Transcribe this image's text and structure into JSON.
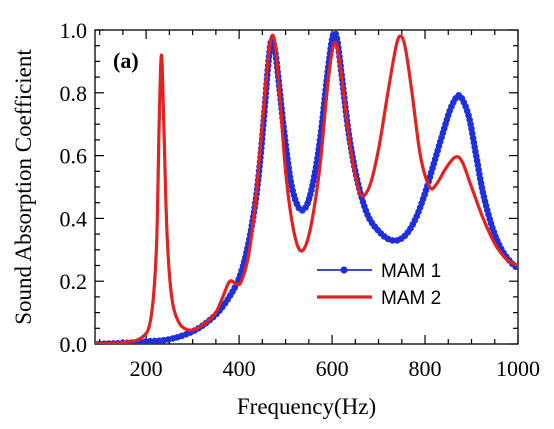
{
  "chart_data": {
    "type": "line",
    "panel_label": "(a)",
    "xlabel": "Frequency(Hz)",
    "ylabel": "Sound Absorption Coefficient",
    "xlim": [
      90,
      1000
    ],
    "ylim": [
      0,
      1.0
    ],
    "xticks": [
      200,
      400,
      600,
      800,
      1000
    ],
    "yticks": [
      0.0,
      0.2,
      0.4,
      0.6,
      0.8,
      1.0
    ],
    "ytick_labels": [
      "0.0",
      "0.2",
      "0.4",
      "0.6",
      "0.8",
      "1.0"
    ],
    "legend_position": "right-center",
    "series": [
      {
        "name": "MAM 1",
        "color": "#1f2fdc",
        "marker": "circle",
        "points": [
          [
            90,
            0.0
          ],
          [
            150,
            0.003
          ],
          [
            200,
            0.008
          ],
          [
            250,
            0.015
          ],
          [
            300,
            0.04
          ],
          [
            340,
            0.08
          ],
          [
            370,
            0.13
          ],
          [
            400,
            0.21
          ],
          [
            420,
            0.32
          ],
          [
            435,
            0.45
          ],
          [
            445,
            0.58
          ],
          [
            455,
            0.75
          ],
          [
            462,
            0.88
          ],
          [
            468,
            0.96
          ],
          [
            472,
            0.965
          ],
          [
            478,
            0.93
          ],
          [
            485,
            0.84
          ],
          [
            495,
            0.7
          ],
          [
            505,
            0.58
          ],
          [
            515,
            0.49
          ],
          [
            530,
            0.43
          ],
          [
            545,
            0.44
          ],
          [
            560,
            0.52
          ],
          [
            575,
            0.66
          ],
          [
            590,
            0.86
          ],
          [
            600,
            0.97
          ],
          [
            606,
            0.99
          ],
          [
            612,
            0.96
          ],
          [
            622,
            0.84
          ],
          [
            635,
            0.68
          ],
          [
            650,
            0.55
          ],
          [
            665,
            0.46
          ],
          [
            680,
            0.4
          ],
          [
            700,
            0.36
          ],
          [
            720,
            0.335
          ],
          [
            740,
            0.33
          ],
          [
            760,
            0.35
          ],
          [
            780,
            0.4
          ],
          [
            800,
            0.48
          ],
          [
            820,
            0.58
          ],
          [
            840,
            0.68
          ],
          [
            855,
            0.75
          ],
          [
            870,
            0.79
          ],
          [
            880,
            0.78
          ],
          [
            895,
            0.72
          ],
          [
            910,
            0.6
          ],
          [
            925,
            0.48
          ],
          [
            945,
            0.37
          ],
          [
            965,
            0.3
          ],
          [
            985,
            0.26
          ],
          [
            1000,
            0.24
          ]
        ]
      },
      {
        "name": "MAM 2",
        "color": "#e3221f",
        "marker": "none",
        "points": [
          [
            90,
            0.0
          ],
          [
            150,
            0.005
          ],
          [
            190,
            0.02
          ],
          [
            210,
            0.08
          ],
          [
            222,
            0.3
          ],
          [
            228,
            0.7
          ],
          [
            233,
            0.92
          ],
          [
            238,
            0.7
          ],
          [
            245,
            0.35
          ],
          [
            255,
            0.15
          ],
          [
            270,
            0.07
          ],
          [
            290,
            0.045
          ],
          [
            310,
            0.05
          ],
          [
            330,
            0.07
          ],
          [
            350,
            0.1
          ],
          [
            365,
            0.15
          ],
          [
            380,
            0.2
          ],
          [
            395,
            0.19
          ],
          [
            405,
            0.2
          ],
          [
            420,
            0.28
          ],
          [
            435,
            0.45
          ],
          [
            450,
            0.7
          ],
          [
            462,
            0.9
          ],
          [
            470,
            0.98
          ],
          [
            478,
            0.95
          ],
          [
            488,
            0.78
          ],
          [
            500,
            0.55
          ],
          [
            515,
            0.38
          ],
          [
            530,
            0.3
          ],
          [
            545,
            0.32
          ],
          [
            560,
            0.42
          ],
          [
            575,
            0.58
          ],
          [
            590,
            0.82
          ],
          [
            600,
            0.93
          ],
          [
            607,
            0.96
          ],
          [
            614,
            0.92
          ],
          [
            625,
            0.8
          ],
          [
            640,
            0.62
          ],
          [
            660,
            0.48
          ],
          [
            680,
            0.5
          ],
          [
            700,
            0.62
          ],
          [
            720,
            0.8
          ],
          [
            738,
            0.95
          ],
          [
            748,
            0.98
          ],
          [
            758,
            0.94
          ],
          [
            772,
            0.8
          ],
          [
            790,
            0.6
          ],
          [
            810,
            0.5
          ],
          [
            825,
            0.51
          ],
          [
            845,
            0.56
          ],
          [
            865,
            0.595
          ],
          [
            880,
            0.58
          ],
          [
            900,
            0.5
          ],
          [
            925,
            0.4
          ],
          [
            950,
            0.32
          ],
          [
            975,
            0.27
          ],
          [
            1000,
            0.25
          ]
        ]
      }
    ]
  }
}
